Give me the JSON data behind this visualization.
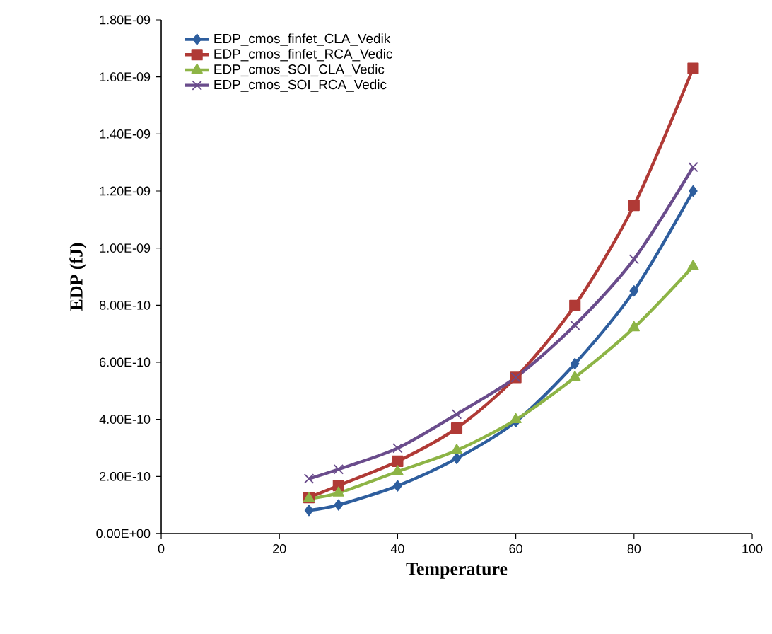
{
  "chart_data": {
    "type": "line",
    "xlabel": "Temperature",
    "ylabel": "EDP (fJ)",
    "x": [
      25,
      30,
      40,
      50,
      60,
      70,
      80,
      90
    ],
    "series": [
      {
        "name": "EDP_cmos_finfet_CLA_Vedik",
        "color": "#2e5e9e",
        "marker": "diamond",
        "values": [
          8.1e-11,
          1e-10,
          1.67e-10,
          2.63e-10,
          3.92e-10,
          5.95e-10,
          8.5e-10,
          1.2e-09
        ]
      },
      {
        "name": "EDP_cmos_finfet_RCA_Vedic",
        "color": "#b03a36",
        "marker": "square",
        "values": [
          1.26e-10,
          1.68e-10,
          2.53e-10,
          3.69e-10,
          5.47e-10,
          7.99e-10,
          1.15e-09,
          1.63e-09
        ]
      },
      {
        "name": "EDP_cmos_SOI_CLA_Vedic",
        "color": "#8db446",
        "marker": "triangle",
        "values": [
          1.22e-10,
          1.42e-10,
          2.17e-10,
          2.91e-10,
          3.99e-10,
          5.47e-10,
          7.21e-10,
          9.36e-10
        ]
      },
      {
        "name": "EDP_cmos_SOI_RCA_Vedic",
        "color": "#6a4c8c",
        "marker": "cross",
        "values": [
          1.92e-10,
          2.25e-10,
          2.99e-10,
          4.18e-10,
          5.47e-10,
          7.3e-10,
          9.61e-10,
          1.284e-09
        ]
      }
    ],
    "xlim": [
      0,
      100
    ],
    "xticks": [
      0,
      20,
      40,
      60,
      80,
      100
    ],
    "ylim": [
      0,
      1.8e-09
    ],
    "yticks": [
      {
        "value": 0,
        "label": "0.00E+00"
      },
      {
        "value": 2e-10,
        "label": "2.00E-10"
      },
      {
        "value": 4e-10,
        "label": "4.00E-10"
      },
      {
        "value": 6e-10,
        "label": "6.00E-10"
      },
      {
        "value": 8e-10,
        "label": "8.00E-10"
      },
      {
        "value": 1e-09,
        "label": "1.00E-09"
      },
      {
        "value": 1.2e-09,
        "label": "1.20E-09"
      },
      {
        "value": 1.4e-09,
        "label": "1.40E-09"
      },
      {
        "value": 1.6e-09,
        "label": "1.60E-09"
      },
      {
        "value": 1.8e-09,
        "label": "1.80E-09"
      }
    ],
    "legend": "top left",
    "grid": false,
    "line_style": "solid"
  }
}
